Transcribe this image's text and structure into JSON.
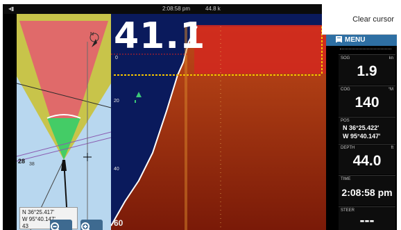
{
  "status_bar": {
    "signal": "◂▮",
    "time": "2:08:58 pm",
    "battery": "44.8 k"
  },
  "chart": {
    "heading_label": "N",
    "depth_contour": "28",
    "depth_contour_2": "38",
    "position_box": {
      "lat": "N 36°25.417'",
      "lon": "W 95°40.147'",
      "extra": "43"
    },
    "zoom_out_icon": "zoom-out-icon",
    "zoom_in_icon": "zoom-in-icon",
    "colors": {
      "water": "#b8d7ef",
      "land": "#c8c44a",
      "sector_red": "#e06a6a",
      "sector_green": "#44cc66"
    }
  },
  "sonar": {
    "depth_readout": "41.1",
    "scale": [
      "0",
      "20",
      "40",
      "60"
    ],
    "colors": {
      "water": "#0a1a5c",
      "bottom": "#b33a10",
      "cursor": "#f5c400"
    }
  },
  "right_panel": {
    "clear_cursor": "Clear cursor",
    "menu": "MENU",
    "fields": [
      {
        "label": "SOG",
        "unit": "kn",
        "value": "1.9"
      },
      {
        "label": "COG",
        "unit": "°M",
        "value": "140"
      },
      {
        "label": "POS",
        "lat": "N  36°25.422'",
        "lon": "W  95°40.147'"
      },
      {
        "label": "DEPTH",
        "unit": "ft",
        "value": "44.0"
      },
      {
        "label": "TIME",
        "value": "2:08:58 pm"
      },
      {
        "label": "STEER",
        "value": "---"
      }
    ]
  }
}
